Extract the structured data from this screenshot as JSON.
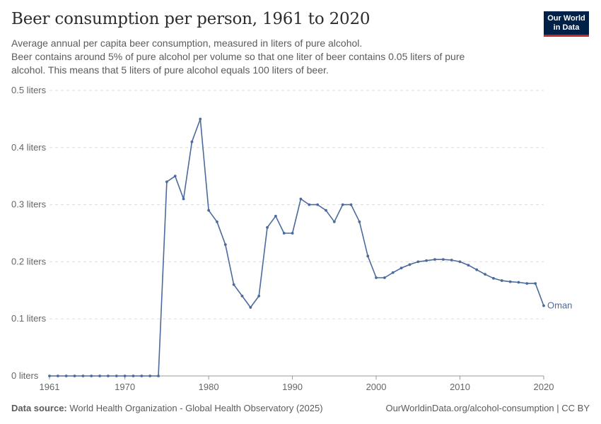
{
  "header": {
    "title": "Beer consumption per person, 1961 to 2020",
    "subtitle_lines": [
      "Average annual per capita beer consumption, measured in liters of pure alcohol.",
      "Beer contains around 5% of pure alcohol per volume so that one liter of beer contains 0.05 liters of pure",
      "alcohol. This means that 5 liters of pure alcohol equals 100 liters of beer."
    ]
  },
  "logo": {
    "line1": "Our World",
    "line2": "in Data",
    "bg_color": "#002147",
    "accent_color": "#ce261e"
  },
  "footer": {
    "source_label": "Data source:",
    "source_text": "World Health Organization - Global Health Observatory (2025)",
    "credit": "OurWorldinData.org/alcohol-consumption | CC BY"
  },
  "chart_data": {
    "type": "line",
    "xlim": [
      1961,
      2020
    ],
    "ylim": [
      0,
      0.5
    ],
    "grid": true,
    "x_ticks": [
      1961,
      1970,
      1980,
      1990,
      2000,
      2010,
      2020
    ],
    "y_ticks": [
      {
        "value": 0,
        "label": "0 liters"
      },
      {
        "value": 0.1,
        "label": "0.1 liters"
      },
      {
        "value": 0.2,
        "label": "0.2 liters"
      },
      {
        "value": 0.3,
        "label": "0.3 liters"
      },
      {
        "value": 0.4,
        "label": "0.4 liters"
      },
      {
        "value": 0.5,
        "label": "0.5 liters"
      }
    ],
    "series": [
      {
        "name": "Oman",
        "color": "#4c6a9c",
        "x": [
          1961,
          1962,
          1963,
          1964,
          1965,
          1966,
          1967,
          1968,
          1969,
          1970,
          1971,
          1972,
          1973,
          1974,
          1975,
          1976,
          1977,
          1978,
          1979,
          1980,
          1981,
          1982,
          1983,
          1984,
          1985,
          1986,
          1987,
          1988,
          1989,
          1990,
          1991,
          1992,
          1993,
          1994,
          1995,
          1996,
          1997,
          1998,
          1999,
          2000,
          2001,
          2002,
          2003,
          2004,
          2005,
          2006,
          2007,
          2008,
          2009,
          2010,
          2011,
          2012,
          2013,
          2014,
          2015,
          2016,
          2017,
          2018,
          2019,
          2020
        ],
        "values": [
          0,
          0,
          0,
          0,
          0,
          0,
          0,
          0,
          0,
          0,
          0,
          0,
          0,
          0,
          0.34,
          0.35,
          0.31,
          0.41,
          0.45,
          0.29,
          0.27,
          0.23,
          0.16,
          0.14,
          0.12,
          0.14,
          0.26,
          0.28,
          0.25,
          0.25,
          0.31,
          0.3,
          0.3,
          0.29,
          0.27,
          0.3,
          0.3,
          0.27,
          0.21,
          0.172,
          0.172,
          0.181,
          0.189,
          0.195,
          0.2,
          0.202,
          0.204,
          0.204,
          0.203,
          0.2,
          0.194,
          0.186,
          0.178,
          0.171,
          0.167,
          0.165,
          0.164,
          0.162,
          0.162,
          0.123
        ]
      }
    ]
  }
}
